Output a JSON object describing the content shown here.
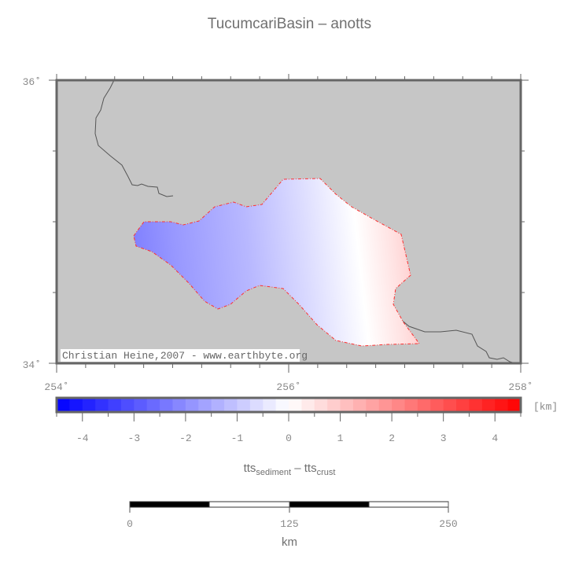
{
  "title": "TucumcariBasin – anotts",
  "map": {
    "lon_range": [
      254,
      258
    ],
    "lat_range": [
      34,
      36
    ],
    "lon_labels": [
      "254˚",
      "256˚",
      "258˚"
    ],
    "lat_labels": [
      "36˚",
      "34˚"
    ],
    "background_color": "#c6c6c6",
    "basin_outline_color": "#ff3030",
    "coastline_color": "#555555",
    "credit": "Christian Heine,2007 - www.earthbyte.org"
  },
  "colorbar": {
    "range": [
      -4.5,
      4.5
    ],
    "step": 0.25,
    "low_color": "#0000ff",
    "mid_color": "#ffffff",
    "high_color": "#ff0000",
    "tick_labels": [
      "-4",
      "-3",
      "-2",
      "-1",
      "0",
      "1",
      "2",
      "3",
      "4"
    ],
    "unit": "[km]",
    "label_main": "tts",
    "label_sub1": "sediment",
    "label_mid": " – tts",
    "label_sub2": "crust"
  },
  "scalebar": {
    "labels": [
      "0",
      "125",
      "250"
    ],
    "unit": "km"
  }
}
